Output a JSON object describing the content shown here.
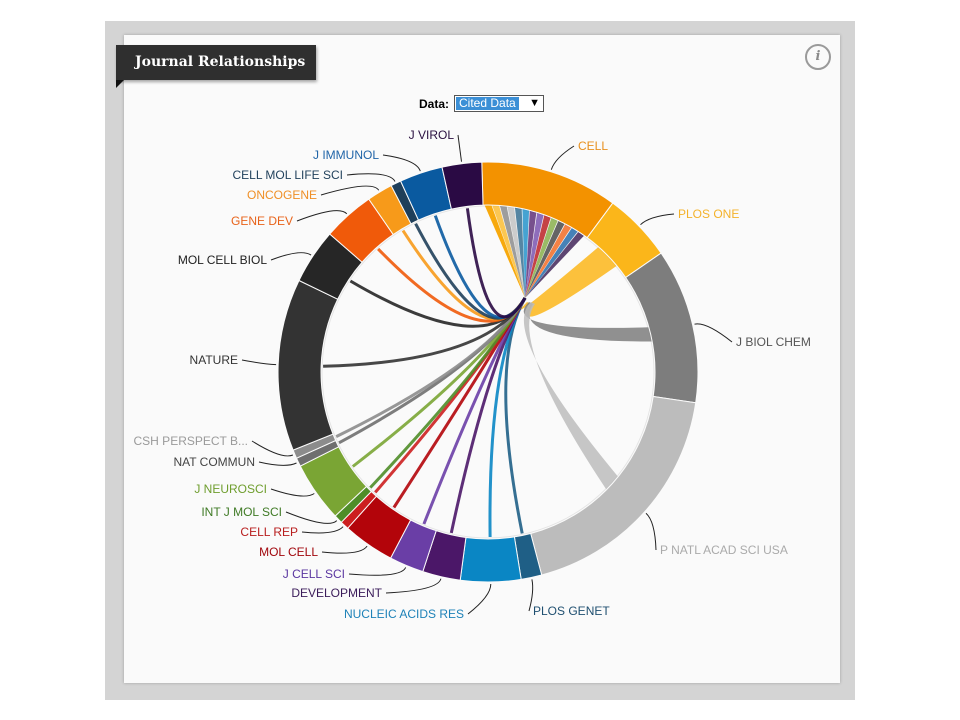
{
  "header": {
    "title": "Journal Relationships",
    "info_icon": "info-icon"
  },
  "controls": {
    "data_label": "Data:",
    "data_selected": "Cited Data",
    "dropdown_icon": "chevron-down-icon"
  },
  "chart_data": {
    "type": "chord",
    "title": "Journal Relationships",
    "focus": "CELL",
    "segments": [
      {
        "name": "CELL",
        "color": "#f39200",
        "value": 8.0
      },
      {
        "name": "PLOS ONE",
        "color": "#fbb61a",
        "value": 4.0
      },
      {
        "name": "J BIOL CHEM",
        "color": "#7d7d7d",
        "value": 9.0
      },
      {
        "name": "P NATL ACAD SCI USA",
        "color": "#bcbcbc",
        "value": 14.0
      },
      {
        "name": "PLOS GENET",
        "color": "#1f5f86",
        "value": 1.2
      },
      {
        "name": "NUCLEIC ACIDS RES",
        "color": "#0a86c4",
        "value": 3.5
      },
      {
        "name": "DEVELOPMENT",
        "color": "#4b1768",
        "value": 2.2
      },
      {
        "name": "J CELL SCI",
        "color": "#6a3ea6",
        "value": 2.0
      },
      {
        "name": "MOL CELL",
        "color": "#b3040a",
        "value": 3.0
      },
      {
        "name": "CELL REP",
        "color": "#cc1f1f",
        "value": 0.5
      },
      {
        "name": "INT J MOL SCI",
        "color": "#4f8d28",
        "value": 0.5
      },
      {
        "name": "J NEUROSCI",
        "color": "#7aa534",
        "value": 3.5
      },
      {
        "name": "NAT COMMUN",
        "color": "#6f6f6f",
        "value": 0.5
      },
      {
        "name": "CSH PERSPECT B...",
        "color": "#8c8c8c",
        "value": 0.5
      },
      {
        "name": "NATURE",
        "color": "#333333",
        "value": 10.0
      },
      {
        "name": "MOL CELL BIOL",
        "color": "#262626",
        "value": 3.2
      },
      {
        "name": "GENE DEV",
        "color": "#f05a0a",
        "value": 3.0
      },
      {
        "name": "ONCOGENE",
        "color": "#f79a1a",
        "value": 1.5
      },
      {
        "name": "CELL MOL LIFE SCI",
        "color": "#1f3f5a",
        "value": 0.6
      },
      {
        "name": "J IMMUNOL",
        "color": "#0a5aa0",
        "value": 2.5
      },
      {
        "name": "J VIROL",
        "color": "#2a0a44",
        "value": 2.3
      }
    ],
    "label_colors": {
      "CELL": "#e8901e",
      "PLOS ONE": "#f4b22a",
      "J BIOL CHEM": "#555555",
      "P NATL ACAD SCI USA": "#aaaaaa",
      "PLOS GENET": "#1f4f70",
      "NUCLEIC ACIDS RES": "#1e82b8",
      "DEVELOPMENT": "#3b1c5a",
      "J CELL SCI": "#5a36a0",
      "MOL CELL": "#a1070d",
      "CELL REP": "#b81e1e",
      "INT J MOL SCI": "#3f7a25",
      "J NEUROSCI": "#6f9e2e",
      "NAT COMMUN": "#444444",
      "CSH PERSPECT B...": "#9a9a9a",
      "NATURE": "#333333",
      "MOL CELL BIOL": "#222222",
      "GENE DEV": "#e8631a",
      "ONCOGENE": "#ef8f26",
      "CELL MOL LIFE SCI": "#1f3f5a",
      "J IMMUNOL": "#1f64a8",
      "J VIROL": "#2a1040"
    }
  }
}
